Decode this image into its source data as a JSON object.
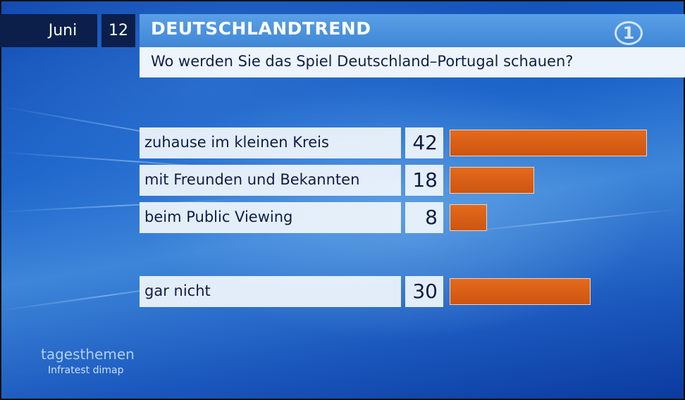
{
  "date": {
    "month": "Juni",
    "day": "12"
  },
  "header": {
    "title": "DEUTSCHLANDTREND",
    "question": "Wo werden Sie das Spiel Deutschland–Portugal schauen?",
    "logo_glyph": "1"
  },
  "chart_data": {
    "type": "bar",
    "orientation": "horizontal",
    "categories": [
      "zuhause im kleinen Kreis",
      "mit Freunden und Bekannten",
      "beim Public Viewing",
      "gar nicht"
    ],
    "values": [
      42,
      18,
      8,
      30
    ],
    "value_labels": [
      "42",
      "18",
      "8",
      "30"
    ],
    "bar_color": "#d85c14",
    "title": "Wo werden Sie das Spiel Deutschland–Portugal schauen?"
  },
  "footer": {
    "brand": "tagesthemen",
    "source": "Infratest dimap"
  },
  "colors": {
    "date_bg": "#0b1f4a",
    "header_bg": "#4a90dd",
    "label_bg": "#ecf3fb",
    "text_dark": "#0f1d45"
  }
}
